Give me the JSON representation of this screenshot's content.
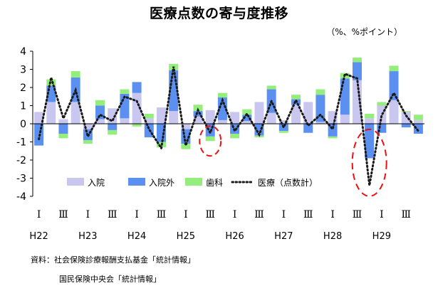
{
  "title": "医療点数の寄与度推移",
  "unit": "（%、%ポイント）",
  "sources": [
    "資料：社会保険診療報酬支払基金「統計情報」",
    "国民保険中央会「統計情報」"
  ],
  "colors": {
    "inpatient": "#c9c7f0",
    "outpatient": "#5b8ff0",
    "dental": "#94ee7c",
    "total": "#1a1a1a",
    "annotation": "#ee1111"
  },
  "chart_data": {
    "type": "bar",
    "stacked": true,
    "ylim": [
      -4,
      4
    ],
    "yticks": [
      4,
      3,
      2,
      1,
      0,
      -1,
      -2,
      -3,
      -4
    ],
    "grid": false,
    "legend_position": "bottom-left",
    "x": [
      "2010 Q1",
      "2010 Q2",
      "2010 Q3",
      "2010 Q4",
      "2011 Q1",
      "2011 Q2",
      "2011 Q3",
      "2011 Q4",
      "2012 Q1",
      "2012 Q2",
      "2012 Q3",
      "2012 Q4",
      "2013 Q1",
      "2013 Q2",
      "2013 Q3",
      "2013 Q4",
      "2014 Q1",
      "2014 Q2",
      "2014 Q3",
      "2014 Q4",
      "2015 Q1",
      "2015 Q2",
      "2015 Q3",
      "2015 Q4",
      "2016 Q1",
      "2016 Q2",
      "2016 Q3",
      "2016 Q4",
      "2017 Q1",
      "2017 Q2",
      "2017 Q3",
      "2017 Q4"
    ],
    "quarter_labels": [
      "Ⅰ",
      "Ⅲ",
      "Ⅰ",
      "Ⅲ",
      "Ⅰ",
      "Ⅲ",
      "Ⅰ",
      "Ⅲ",
      "Ⅰ",
      "Ⅲ",
      "Ⅰ",
      "Ⅲ",
      "Ⅰ",
      "Ⅲ",
      "Ⅰ",
      "Ⅲ"
    ],
    "year_labels": [
      "H22",
      "H23",
      "H24",
      "H25",
      "H26",
      "H27",
      "H28",
      "H29"
    ],
    "series": [
      {
        "name": "入院",
        "kind": "bar",
        "values": [
          0.65,
          1.2,
          0.25,
          1.2,
          -0.3,
          0.25,
          0.85,
          0.3,
          1.7,
          0.3,
          0.9,
          0.7,
          -0.3,
          0.4,
          0.75,
          0.2,
          0.65,
          0.15,
          1.2,
          0.6,
          0.2,
          1.05,
          1.2,
          0.1,
          0.7,
          0.5,
          2.4,
          0.3,
          1.0,
          1.3,
          0.65,
          0.2
        ]
      },
      {
        "name": "入院外",
        "kind": "bar",
        "values": [
          -1.2,
          0.9,
          -0.55,
          1.35,
          -0.6,
          0.75,
          -0.35,
          1.35,
          0.6,
          -0.75,
          -1.0,
          2.25,
          -0.8,
          0.3,
          -0.7,
          1.25,
          -0.55,
          0.35,
          -0.65,
          1.3,
          -0.4,
          0.3,
          -0.5,
          1.5,
          -0.7,
          2.0,
          1.0,
          -1.9,
          -0.5,
          1.6,
          -0.2,
          -0.55
        ]
      },
      {
        "name": "歯科",
        "kind": "bar",
        "values": [
          0.0,
          0.35,
          -0.25,
          0.35,
          -0.2,
          0.3,
          -0.25,
          0.25,
          -0.15,
          0.25,
          -0.3,
          0.35,
          -0.3,
          0.35,
          -0.25,
          0.25,
          -0.25,
          0.3,
          -0.1,
          0.2,
          -0.1,
          0.25,
          0.0,
          0.3,
          -0.1,
          0.3,
          0.25,
          0.25,
          0.2,
          0.3,
          0.05,
          0.3
        ]
      },
      {
        "name": "医療（点数計）",
        "kind": "line",
        "style": "dotted",
        "values": [
          -0.85,
          2.55,
          0.3,
          1.85,
          -0.7,
          0.5,
          0.15,
          1.5,
          1.25,
          -0.3,
          -1.35,
          3.15,
          -1.2,
          0.75,
          -0.5,
          1.3,
          -0.4,
          0.55,
          -0.6,
          1.25,
          -0.2,
          1.3,
          -0.1,
          0.5,
          -0.3,
          2.75,
          2.5,
          -3.4,
          0.45,
          1.7,
          0.45,
          -0.4
        ]
      }
    ]
  }
}
